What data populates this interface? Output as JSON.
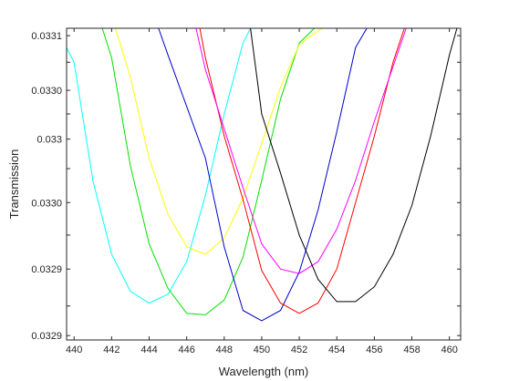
{
  "chart_data": {
    "type": "line",
    "xlabel": "Wavelength (nm)",
    "ylabel": "Transmission",
    "xlim": [
      439.6,
      460.6
    ],
    "ylim": [
      0.032897,
      0.033108
    ],
    "grid": false,
    "x_ticks": [
      440,
      442,
      444,
      446,
      448,
      450,
      452,
      454,
      456,
      458,
      460
    ],
    "x_tick_labels": [
      "440",
      "442",
      "444",
      "446",
      "448",
      "450",
      "452",
      "454",
      "456",
      "458",
      "460"
    ],
    "y_ticks": [
      0.0329,
      0.03292,
      0.032945,
      0.032968,
      0.03299,
      0.033013,
      0.033033,
      0.03305,
      0.033066,
      0.033085,
      0.033103
    ],
    "y_tick_labels": [
      "0.0329",
      "",
      "0.0329",
      "",
      "0.0330",
      "",
      "0.033",
      "",
      "0.0330",
      "",
      "0.0331"
    ],
    "series": [
      {
        "color": "#00ffff",
        "x": [
          439,
          440,
          441,
          442,
          443,
          444,
          445,
          446,
          447,
          448,
          449,
          449.4
        ],
        "y": [
          0.03311,
          0.033085,
          0.033005,
          0.032955,
          0.03293,
          0.032922,
          0.032928,
          0.03295,
          0.032995,
          0.03305,
          0.033098,
          0.033108
        ]
      },
      {
        "color": "#00e000",
        "x": [
          441.5,
          442,
          443,
          444,
          445,
          446,
          447,
          448,
          449,
          450,
          451,
          452,
          452.8
        ],
        "y": [
          0.033108,
          0.033088,
          0.033015,
          0.032962,
          0.032932,
          0.032915,
          0.032914,
          0.032924,
          0.032953,
          0.033005,
          0.03306,
          0.033098,
          0.033108
        ]
      },
      {
        "color": "#ffff00",
        "x": [
          442.2,
          443,
          444,
          445,
          446,
          447,
          448,
          449,
          450,
          451,
          452,
          453.2
        ],
        "y": [
          0.033108,
          0.033075,
          0.03302,
          0.032982,
          0.03296,
          0.032955,
          0.032966,
          0.032993,
          0.03303,
          0.033068,
          0.033097,
          0.033108
        ]
      },
      {
        "color": "#0000cc",
        "x": [
          444.5,
          445,
          446,
          447,
          448,
          449,
          450,
          451,
          452,
          453,
          454,
          455,
          455.6
        ],
        "y": [
          0.033108,
          0.03309,
          0.033055,
          0.03302,
          0.03296,
          0.032917,
          0.03291,
          0.032917,
          0.032943,
          0.032985,
          0.033038,
          0.033095,
          0.033108
        ]
      },
      {
        "color": "#ff0000",
        "x": [
          446.7,
          447,
          448,
          449,
          450,
          451,
          452,
          453,
          454,
          455,
          456,
          457,
          457.6
        ],
        "y": [
          0.033108,
          0.033088,
          0.033035,
          0.032992,
          0.032944,
          0.032922,
          0.032915,
          0.032922,
          0.032945,
          0.03299,
          0.033035,
          0.033085,
          0.033108
        ]
      },
      {
        "color": "#ff00ff",
        "x": [
          446.5,
          447,
          448,
          449,
          450,
          451,
          452,
          453,
          454,
          455,
          456,
          457.7
        ],
        "y": [
          0.033108,
          0.03308,
          0.03304,
          0.033,
          0.032962,
          0.032945,
          0.032942,
          0.03295,
          0.032972,
          0.033005,
          0.033045,
          0.033108
        ]
      },
      {
        "color": "#000000",
        "x": [
          449.4,
          450,
          451,
          452,
          453,
          454,
          455,
          456,
          457,
          458,
          459,
          460,
          460.4
        ],
        "y": [
          0.033108,
          0.03305,
          0.03301,
          0.032968,
          0.032938,
          0.032923,
          0.032923,
          0.032933,
          0.032955,
          0.032988,
          0.033035,
          0.03309,
          0.033108
        ]
      }
    ]
  }
}
